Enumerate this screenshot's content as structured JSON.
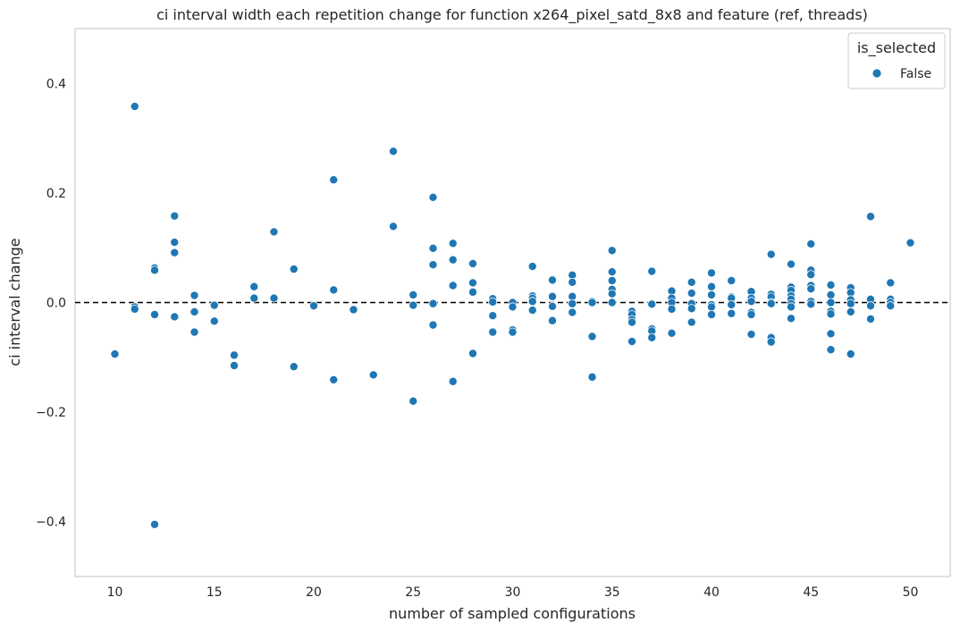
{
  "chart_data": {
    "type": "scatter",
    "title": "ci interval width each repetition change for function x264_pixel_satd_8x8 and feature (ref, threads)",
    "xlabel": "number of sampled configurations",
    "ylabel": "ci interval change",
    "xlim": [
      8,
      52
    ],
    "ylim": [
      -0.5,
      0.5
    ],
    "x_ticks": [
      10,
      15,
      20,
      25,
      30,
      35,
      40,
      45,
      50
    ],
    "y_ticks": [
      -0.4,
      -0.2,
      0.0,
      0.2,
      0.4
    ],
    "y_tick_labels": [
      "−0.4",
      "−0.2",
      "0.0",
      "0.2",
      "0.4"
    ],
    "grid": false,
    "reference_line": {
      "y": 0.0,
      "style": "dashed",
      "color": "#000000"
    },
    "legend": {
      "title": "is_selected",
      "placement": "top-right",
      "entries": [
        "False"
      ]
    },
    "series": [
      {
        "name": "False",
        "color": "#1f77b4",
        "points": [
          [
            10,
            -0.094
          ],
          [
            11,
            0.358
          ],
          [
            11,
            -0.008
          ],
          [
            11,
            -0.012
          ],
          [
            12,
            0.063
          ],
          [
            12,
            0.059
          ],
          [
            12,
            -0.022
          ],
          [
            12,
            -0.405
          ],
          [
            13,
            0.158
          ],
          [
            13,
            0.11
          ],
          [
            13,
            0.091
          ],
          [
            13,
            -0.026
          ],
          [
            14,
            0.013
          ],
          [
            14,
            -0.017
          ],
          [
            14,
            -0.054
          ],
          [
            15,
            -0.005
          ],
          [
            15,
            -0.034
          ],
          [
            16,
            -0.096
          ],
          [
            16,
            -0.115
          ],
          [
            17,
            0.029
          ],
          [
            17,
            0.008
          ],
          [
            18,
            0.129
          ],
          [
            18,
            0.008
          ],
          [
            19,
            0.061
          ],
          [
            19,
            -0.117
          ],
          [
            20,
            -0.006
          ],
          [
            21,
            0.224
          ],
          [
            21,
            0.023
          ],
          [
            21,
            -0.141
          ],
          [
            22,
            -0.013
          ],
          [
            23,
            -0.132
          ],
          [
            24,
            0.276
          ],
          [
            24,
            0.139
          ],
          [
            25,
            0.014
          ],
          [
            25,
            -0.005
          ],
          [
            25,
            -0.18
          ],
          [
            26,
            0.192
          ],
          [
            26,
            0.099
          ],
          [
            26,
            0.069
          ],
          [
            26,
            -0.002
          ],
          [
            26,
            -0.041
          ],
          [
            27,
            0.108
          ],
          [
            27,
            0.078
          ],
          [
            27,
            0.031
          ],
          [
            27,
            -0.144
          ],
          [
            28,
            0.071
          ],
          [
            28,
            0.036
          ],
          [
            28,
            0.019
          ],
          [
            28,
            -0.093
          ],
          [
            29,
            0.007
          ],
          [
            29,
            0.001
          ],
          [
            29,
            -0.024
          ],
          [
            29,
            -0.054
          ],
          [
            30,
            0.0
          ],
          [
            30,
            -0.008
          ],
          [
            30,
            -0.05
          ],
          [
            30,
            -0.054
          ],
          [
            31,
            0.066
          ],
          [
            31,
            0.012
          ],
          [
            31,
            0.008
          ],
          [
            31,
            0.002
          ],
          [
            31,
            -0.014
          ],
          [
            32,
            0.041
          ],
          [
            32,
            0.011
          ],
          [
            32,
            -0.007
          ],
          [
            32,
            -0.033
          ],
          [
            33,
            0.05
          ],
          [
            33,
            0.037
          ],
          [
            33,
            0.011
          ],
          [
            33,
            -0.002
          ],
          [
            33,
            -0.018
          ],
          [
            34,
            0.002
          ],
          [
            34,
            0.0
          ],
          [
            34,
            -0.062
          ],
          [
            34,
            -0.136
          ],
          [
            35,
            0.095
          ],
          [
            35,
            0.056
          ],
          [
            35,
            0.04
          ],
          [
            35,
            0.024
          ],
          [
            35,
            0.016
          ],
          [
            35,
            0.0
          ],
          [
            36,
            -0.016
          ],
          [
            36,
            -0.022
          ],
          [
            36,
            -0.031
          ],
          [
            36,
            -0.036
          ],
          [
            36,
            -0.071
          ],
          [
            37,
            0.057
          ],
          [
            37,
            -0.003
          ],
          [
            37,
            -0.048
          ],
          [
            37,
            -0.052
          ],
          [
            37,
            -0.064
          ],
          [
            38,
            0.021
          ],
          [
            38,
            0.008
          ],
          [
            38,
            0.0
          ],
          [
            38,
            -0.012
          ],
          [
            38,
            -0.056
          ],
          [
            39,
            0.037
          ],
          [
            39,
            0.017
          ],
          [
            39,
            -0.002
          ],
          [
            39,
            -0.011
          ],
          [
            39,
            -0.036
          ],
          [
            40,
            0.054
          ],
          [
            40,
            0.029
          ],
          [
            40,
            0.014
          ],
          [
            40,
            -0.004
          ],
          [
            40,
            -0.008
          ],
          [
            40,
            -0.022
          ],
          [
            41,
            0.04
          ],
          [
            41,
            0.01
          ],
          [
            41,
            0.008
          ],
          [
            41,
            -0.004
          ],
          [
            41,
            -0.02
          ],
          [
            42,
            0.02
          ],
          [
            42,
            0.008
          ],
          [
            42,
            0.002
          ],
          [
            42,
            -0.018
          ],
          [
            42,
            -0.022
          ],
          [
            42,
            -0.058
          ],
          [
            43,
            0.088
          ],
          [
            43,
            0.015
          ],
          [
            43,
            0.01
          ],
          [
            43,
            0.0
          ],
          [
            43,
            -0.002
          ],
          [
            43,
            -0.064
          ],
          [
            43,
            -0.072
          ],
          [
            44,
            0.07
          ],
          [
            44,
            0.028
          ],
          [
            44,
            0.022
          ],
          [
            44,
            0.012
          ],
          [
            44,
            0.006
          ],
          [
            44,
            -0.002
          ],
          [
            44,
            -0.008
          ],
          [
            44,
            -0.029
          ],
          [
            45,
            0.107
          ],
          [
            45,
            0.059
          ],
          [
            45,
            0.051
          ],
          [
            45,
            0.031
          ],
          [
            45,
            0.025
          ],
          [
            45,
            0.002
          ],
          [
            45,
            -0.003
          ],
          [
            46,
            0.032
          ],
          [
            46,
            0.014
          ],
          [
            46,
            0.0
          ],
          [
            46,
            -0.016
          ],
          [
            46,
            -0.021
          ],
          [
            46,
            -0.057
          ],
          [
            46,
            -0.086
          ],
          [
            47,
            0.027
          ],
          [
            47,
            0.018
          ],
          [
            47,
            0.005
          ],
          [
            47,
            -0.002
          ],
          [
            47,
            -0.017
          ],
          [
            47,
            -0.094
          ],
          [
            48,
            0.157
          ],
          [
            48,
            0.006
          ],
          [
            48,
            -0.006
          ],
          [
            48,
            -0.03
          ],
          [
            49,
            0.036
          ],
          [
            49,
            0.006
          ],
          [
            49,
            0.0
          ],
          [
            49,
            -0.006
          ],
          [
            50,
            0.109
          ]
        ]
      }
    ]
  }
}
